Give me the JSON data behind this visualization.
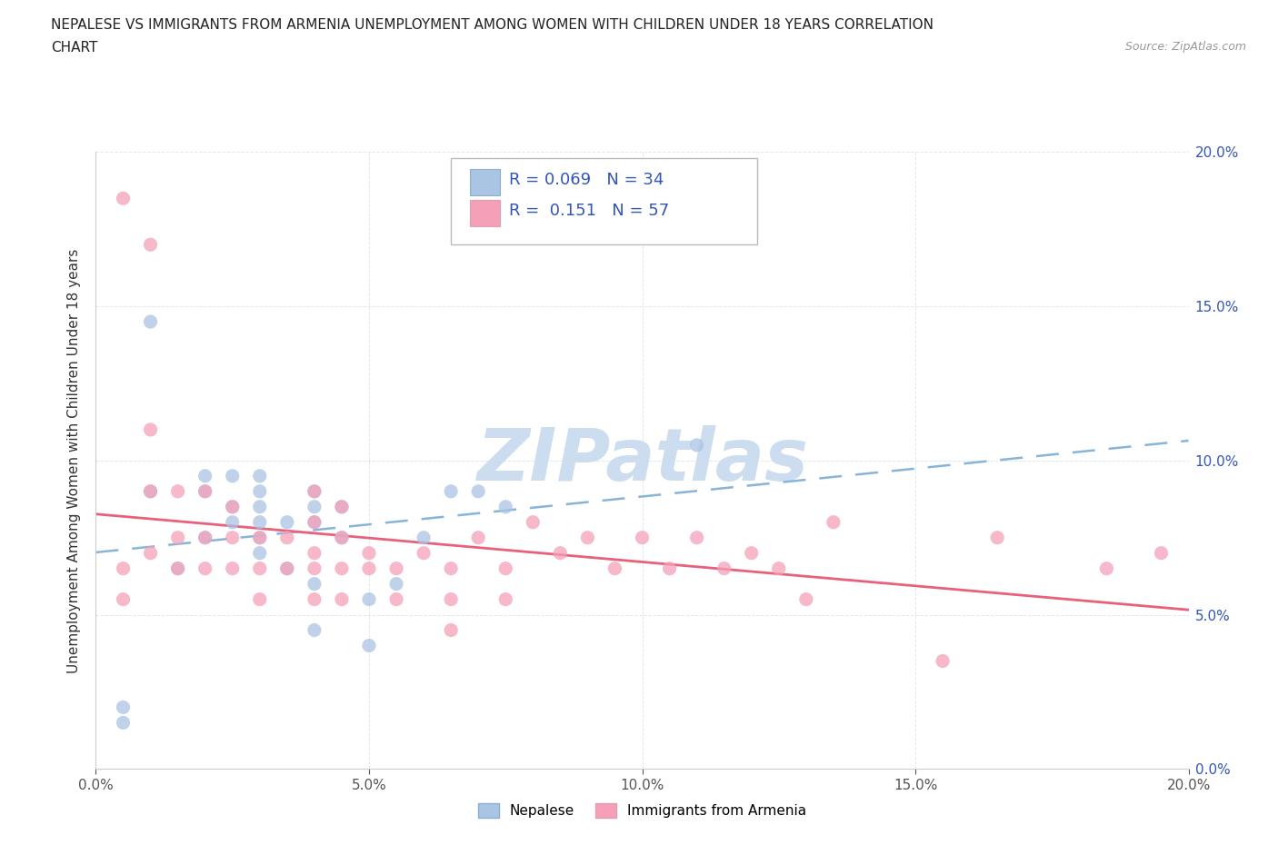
{
  "title_line1": "NEPALESE VS IMMIGRANTS FROM ARMENIA UNEMPLOYMENT AMONG WOMEN WITH CHILDREN UNDER 18 YEARS CORRELATION",
  "title_line2": "CHART",
  "source": "Source: ZipAtlas.com",
  "ylabel": "Unemployment Among Women with Children Under 18 years",
  "xlim": [
    0.0,
    0.2
  ],
  "ylim": [
    0.0,
    0.2
  ],
  "xticks": [
    0.0,
    0.05,
    0.1,
    0.15,
    0.2
  ],
  "yticks": [
    0.0,
    0.05,
    0.1,
    0.15,
    0.2
  ],
  "xtick_labels": [
    "0.0%",
    "5.0%",
    "10.0%",
    "15.0%",
    "20.0%"
  ],
  "ytick_labels_right": [
    "0.0%",
    "5.0%",
    "10.0%",
    "15.0%",
    "20.0%"
  ],
  "color_nepalese": "#aac4e4",
  "color_armenia": "#f5a0b8",
  "trendline_nepalese": "#88b4d8",
  "trendline_armenia": "#e8607a",
  "watermark": "ZIPatlas",
  "watermark_color": "#ccddf0",
  "legend_nepalese_label": "Nepalese",
  "legend_armenia_label": "Immigrants from Armenia",
  "nepalese_x": [
    0.005,
    0.005,
    0.01,
    0.01,
    0.015,
    0.02,
    0.02,
    0.02,
    0.025,
    0.025,
    0.025,
    0.03,
    0.03,
    0.03,
    0.03,
    0.03,
    0.03,
    0.035,
    0.035,
    0.04,
    0.04,
    0.04,
    0.04,
    0.04,
    0.045,
    0.045,
    0.05,
    0.05,
    0.055,
    0.06,
    0.065,
    0.07,
    0.075,
    0.11
  ],
  "nepalese_y": [
    0.02,
    0.015,
    0.145,
    0.09,
    0.065,
    0.095,
    0.09,
    0.075,
    0.095,
    0.085,
    0.08,
    0.095,
    0.09,
    0.085,
    0.08,
    0.075,
    0.07,
    0.08,
    0.065,
    0.09,
    0.085,
    0.08,
    0.06,
    0.045,
    0.085,
    0.075,
    0.055,
    0.04,
    0.06,
    0.075,
    0.09,
    0.09,
    0.085,
    0.105
  ],
  "armenia_x": [
    0.005,
    0.005,
    0.005,
    0.01,
    0.01,
    0.01,
    0.01,
    0.015,
    0.015,
    0.015,
    0.02,
    0.02,
    0.02,
    0.025,
    0.025,
    0.025,
    0.03,
    0.03,
    0.03,
    0.035,
    0.035,
    0.04,
    0.04,
    0.04,
    0.04,
    0.04,
    0.045,
    0.045,
    0.045,
    0.045,
    0.05,
    0.05,
    0.055,
    0.055,
    0.06,
    0.065,
    0.065,
    0.065,
    0.07,
    0.075,
    0.075,
    0.08,
    0.085,
    0.09,
    0.095,
    0.1,
    0.105,
    0.11,
    0.115,
    0.12,
    0.125,
    0.13,
    0.135,
    0.155,
    0.165,
    0.185,
    0.195
  ],
  "armenia_y": [
    0.185,
    0.065,
    0.055,
    0.17,
    0.11,
    0.09,
    0.07,
    0.09,
    0.075,
    0.065,
    0.09,
    0.075,
    0.065,
    0.085,
    0.075,
    0.065,
    0.075,
    0.065,
    0.055,
    0.075,
    0.065,
    0.09,
    0.08,
    0.07,
    0.065,
    0.055,
    0.085,
    0.075,
    0.065,
    0.055,
    0.07,
    0.065,
    0.065,
    0.055,
    0.07,
    0.065,
    0.055,
    0.045,
    0.075,
    0.065,
    0.055,
    0.08,
    0.07,
    0.075,
    0.065,
    0.075,
    0.065,
    0.075,
    0.065,
    0.07,
    0.065,
    0.055,
    0.08,
    0.035,
    0.075,
    0.065,
    0.07
  ],
  "background_color": "#ffffff",
  "grid_color": "#e0e8f0",
  "title_fontsize": 11,
  "tick_fontsize": 11,
  "ylabel_fontsize": 11
}
